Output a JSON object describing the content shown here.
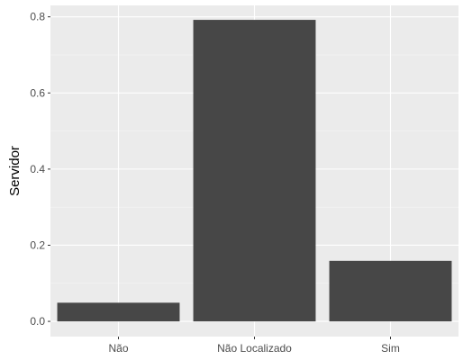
{
  "chart_data": {
    "type": "bar",
    "categories": [
      "Não",
      "Não Localizado",
      "Sim"
    ],
    "values": [
      0.049,
      0.792,
      0.159
    ],
    "title": "",
    "xlabel": "",
    "ylabel": "Servidor",
    "ylim": [
      -0.04,
      0.83
    ],
    "yticks": [
      0.0,
      0.2,
      0.4,
      0.6,
      0.8
    ],
    "ytick_labels": [
      "0.0",
      "0.2",
      "0.4",
      "0.6",
      "0.8"
    ],
    "grid": true,
    "legend": "none",
    "colors": {
      "panel": "#EBEBEB",
      "grid_major": "#FFFFFF",
      "grid_minor": "#F5F5F5",
      "bar": "#474747",
      "tick": "#333333"
    }
  }
}
